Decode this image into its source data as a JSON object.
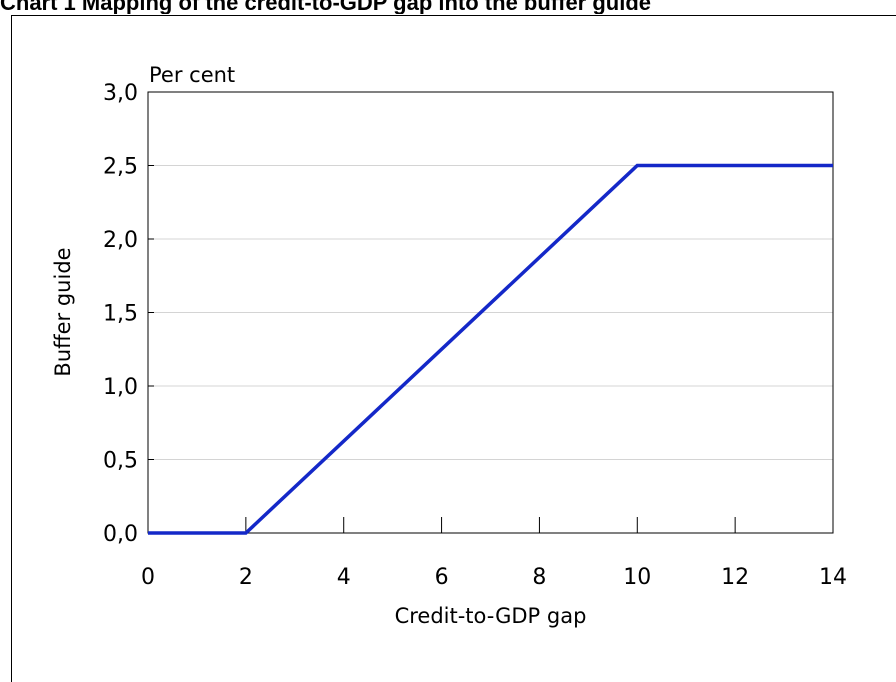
{
  "header": {
    "title": "Chart 1 Mapping of the credit-to-GDP gap into the buffer guide"
  },
  "chart_data": {
    "type": "line",
    "title": "Chart 1 Mapping of the credit-to-GDP gap into the buffer guide",
    "xlabel": "Credit-to-GDP gap",
    "ylabel": "Buffer guide",
    "unit_label": "Per cent",
    "xlim": [
      0,
      14
    ],
    "ylim": [
      0,
      3
    ],
    "x_ticks": [
      0,
      2,
      4,
      6,
      8,
      10,
      12,
      14
    ],
    "y_ticks": [
      0,
      0.5,
      1,
      1.5,
      2,
      2.5,
      3
    ],
    "x_tick_labels": [
      "0",
      "2",
      "4",
      "6",
      "8",
      "10",
      "12",
      "14"
    ],
    "y_tick_labels": [
      "0,0",
      "0,5",
      "1,0",
      "1,5",
      "2,0",
      "2,5",
      "3,0"
    ],
    "grid": true,
    "series": [
      {
        "x": [
          0,
          2,
          10,
          14
        ],
        "y": [
          0,
          0,
          2.5,
          2.5
        ],
        "color": "#1428c8"
      }
    ]
  }
}
